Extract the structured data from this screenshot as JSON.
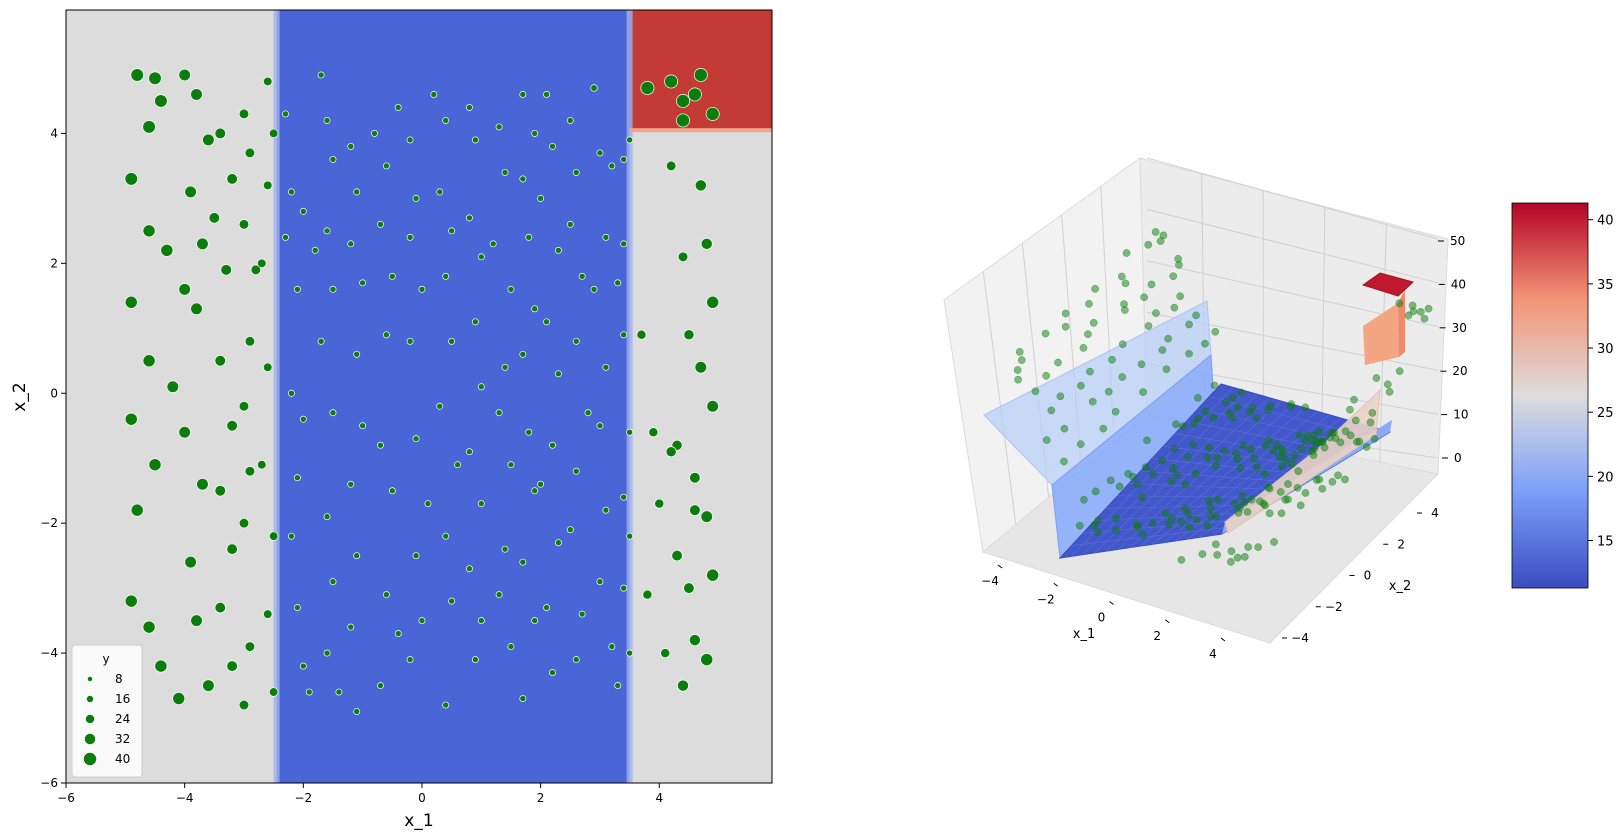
{
  "chart_data": [
    {
      "type": "scatter",
      "title": "",
      "xlabel": "x_1",
      "ylabel": "x_2",
      "xlim": [
        -6,
        5.9
      ],
      "ylim": [
        -6,
        5.9
      ],
      "xticks": [
        "−6",
        "−4",
        "−2",
        "0",
        "2",
        "4"
      ],
      "xtick_values": [
        -6,
        -4,
        -2,
        0,
        2,
        4
      ],
      "yticks": [
        "−6",
        "−4",
        "−2",
        "0",
        "2",
        "4"
      ],
      "ytick_values": [
        -6,
        -4,
        -2,
        0,
        2,
        4
      ],
      "background_regions": [
        {
          "x": [
            -6,
            -2.45
          ],
          "y": [
            -6,
            5.9
          ],
          "color": "#dcdcdc",
          "value": 25
        },
        {
          "x": [
            -2.45,
            3.5
          ],
          "y": [
            -6,
            5.9
          ],
          "color": "#4a65d6",
          "value": 12
        },
        {
          "x": [
            3.5,
            5.9
          ],
          "y": [
            -6,
            4.05
          ],
          "color": "#dcdcdc",
          "value": 25
        },
        {
          "x": [
            3.5,
            5.9
          ],
          "y": [
            4.05,
            5.9
          ],
          "color": "#c43a35",
          "value": 40
        }
      ],
      "point_color": "#0a7d0a",
      "points": [
        [
          -4.8,
          4.9,
          38
        ],
        [
          -4.5,
          4.85,
          38
        ],
        [
          -4.4,
          4.5,
          38
        ],
        [
          -4.6,
          4.1,
          38
        ],
        [
          -4.9,
          3.3,
          38
        ],
        [
          -4.6,
          2.5,
          36
        ],
        [
          -4.3,
          2.2,
          36
        ],
        [
          -4.9,
          1.4,
          36
        ],
        [
          -4.6,
          0.5,
          36
        ],
        [
          -4.9,
          -0.4,
          36
        ],
        [
          -4.5,
          -1.1,
          36
        ],
        [
          -4.8,
          -1.8,
          36
        ],
        [
          -4.9,
          -3.2,
          36
        ],
        [
          -4.6,
          -3.6,
          36
        ],
        [
          -4.4,
          -4.2,
          36
        ],
        [
          -4.1,
          -4.7,
          36
        ],
        [
          -4.0,
          4.9,
          34
        ],
        [
          -3.8,
          4.6,
          34
        ],
        [
          -3.6,
          3.9,
          34
        ],
        [
          -3.9,
          3.1,
          34
        ],
        [
          -3.7,
          2.3,
          34
        ],
        [
          -4.0,
          1.6,
          34
        ],
        [
          -3.8,
          1.3,
          34
        ],
        [
          -4.2,
          0.1,
          34
        ],
        [
          -4.0,
          -0.6,
          34
        ],
        [
          -3.7,
          -1.4,
          34
        ],
        [
          -3.9,
          -2.6,
          34
        ],
        [
          -3.8,
          -3.5,
          34
        ],
        [
          -3.6,
          -4.5,
          34
        ],
        [
          -3.4,
          4.0,
          30
        ],
        [
          -3.2,
          3.3,
          30
        ],
        [
          -3.5,
          2.7,
          30
        ],
        [
          -3.3,
          1.9,
          30
        ],
        [
          -3.4,
          0.5,
          30
        ],
        [
          -3.2,
          -0.5,
          30
        ],
        [
          -3.4,
          -1.5,
          30
        ],
        [
          -3.2,
          -2.4,
          30
        ],
        [
          -3.4,
          -3.3,
          30
        ],
        [
          -3.2,
          -4.2,
          30
        ],
        [
          -3.0,
          4.3,
          26
        ],
        [
          -2.9,
          3.7,
          26
        ],
        [
          -3.0,
          2.6,
          26
        ],
        [
          -2.8,
          1.9,
          26
        ],
        [
          -2.9,
          0.8,
          26
        ],
        [
          -3.0,
          -0.2,
          26
        ],
        [
          -2.9,
          -1.2,
          26
        ],
        [
          -3.0,
          -2.0,
          26
        ],
        [
          -2.9,
          -3.9,
          26
        ],
        [
          -3.0,
          -4.8,
          26
        ],
        [
          -2.6,
          4.8,
          22
        ],
        [
          -2.5,
          4.0,
          22
        ],
        [
          -2.6,
          3.2,
          22
        ],
        [
          -2.7,
          2.0,
          22
        ],
        [
          -2.6,
          0.4,
          22
        ],
        [
          -2.7,
          -1.1,
          22
        ],
        [
          -2.5,
          -2.2,
          22
        ],
        [
          -2.6,
          -3.4,
          22
        ],
        [
          -2.5,
          -4.6,
          22
        ],
        [
          -2.3,
          4.3,
          12
        ],
        [
          -2.2,
          3.1,
          12
        ],
        [
          -2.3,
          2.4,
          12
        ],
        [
          -2.0,
          2.8,
          12
        ],
        [
          -1.8,
          2.2,
          12
        ],
        [
          -2.1,
          1.6,
          12
        ],
        [
          -2.2,
          0.0,
          12
        ],
        [
          -2.0,
          -0.4,
          12
        ],
        [
          -2.1,
          -1.3,
          12
        ],
        [
          -2.2,
          -2.2,
          12
        ],
        [
          -2.1,
          -3.3,
          12
        ],
        [
          -2.0,
          -4.2,
          12
        ],
        [
          -1.9,
          -4.6,
          12
        ],
        [
          -1.7,
          4.9,
          12
        ],
        [
          -1.6,
          4.2,
          12
        ],
        [
          -1.5,
          3.6,
          12
        ],
        [
          -1.6,
          2.5,
          12
        ],
        [
          -1.5,
          1.6,
          12
        ],
        [
          -1.7,
          0.8,
          12
        ],
        [
          -1.5,
          -0.3,
          12
        ],
        [
          -1.6,
          -1.9,
          12
        ],
        [
          -1.5,
          -2.9,
          12
        ],
        [
          -1.6,
          -4.0,
          12
        ],
        [
          -1.4,
          -4.6,
          12
        ],
        [
          -1.2,
          3.8,
          12
        ],
        [
          -1.1,
          3.1,
          12
        ],
        [
          -1.2,
          2.3,
          12
        ],
        [
          -1.0,
          1.7,
          12
        ],
        [
          -1.1,
          0.6,
          12
        ],
        [
          -1.0,
          -0.5,
          12
        ],
        [
          -1.2,
          -1.4,
          12
        ],
        [
          -1.1,
          -2.5,
          12
        ],
        [
          -1.2,
          -3.6,
          12
        ],
        [
          -1.1,
          -4.9,
          12
        ],
        [
          -0.8,
          4.0,
          12
        ],
        [
          -0.6,
          3.5,
          12
        ],
        [
          -0.7,
          2.6,
          12
        ],
        [
          -0.5,
          1.8,
          12
        ],
        [
          -0.6,
          0.9,
          12
        ],
        [
          -0.7,
          -0.8,
          12
        ],
        [
          -0.5,
          -1.5,
          12
        ],
        [
          -0.6,
          -3.1,
          12
        ],
        [
          -0.4,
          -3.7,
          12
        ],
        [
          -0.7,
          -4.5,
          12
        ],
        [
          -0.4,
          4.4,
          12
        ],
        [
          -0.2,
          3.9,
          12
        ],
        [
          -0.1,
          3.0,
          12
        ],
        [
          -0.2,
          2.4,
          12
        ],
        [
          0.0,
          1.6,
          12
        ],
        [
          -0.2,
          0.8,
          12
        ],
        [
          -0.1,
          -0.7,
          12
        ],
        [
          0.1,
          -1.7,
          12
        ],
        [
          -0.1,
          -2.5,
          12
        ],
        [
          0.0,
          -3.5,
          12
        ],
        [
          -0.2,
          -4.1,
          12
        ],
        [
          0.2,
          4.6,
          12
        ],
        [
          0.4,
          4.2,
          12
        ],
        [
          0.3,
          3.1,
          12
        ],
        [
          0.5,
          2.5,
          12
        ],
        [
          0.4,
          1.8,
          12
        ],
        [
          0.5,
          0.8,
          12
        ],
        [
          0.3,
          -0.2,
          12
        ],
        [
          0.6,
          -1.1,
          12
        ],
        [
          0.4,
          -2.2,
          12
        ],
        [
          0.5,
          -3.2,
          12
        ],
        [
          0.4,
          -4.8,
          12
        ],
        [
          0.8,
          4.4,
          12
        ],
        [
          0.9,
          3.9,
          12
        ],
        [
          0.8,
          2.7,
          12
        ],
        [
          1.0,
          2.1,
          12
        ],
        [
          0.9,
          1.1,
          12
        ],
        [
          1.0,
          0.1,
          12
        ],
        [
          0.8,
          -0.9,
          12
        ],
        [
          1.0,
          -1.7,
          12
        ],
        [
          0.8,
          -2.7,
          12
        ],
        [
          1.0,
          -3.5,
          12
        ],
        [
          0.9,
          -4.1,
          12
        ],
        [
          1.3,
          4.1,
          12
        ],
        [
          1.4,
          3.4,
          12
        ],
        [
          1.2,
          2.3,
          12
        ],
        [
          1.5,
          1.6,
          12
        ],
        [
          1.4,
          0.4,
          12
        ],
        [
          1.3,
          -0.3,
          12
        ],
        [
          1.5,
          -1.1,
          12
        ],
        [
          1.4,
          -2.4,
          12
        ],
        [
          1.3,
          -3.1,
          12
        ],
        [
          1.5,
          -3.9,
          12
        ],
        [
          1.7,
          4.6,
          12
        ],
        [
          1.9,
          4.0,
          12
        ],
        [
          1.7,
          3.3,
          12
        ],
        [
          1.8,
          2.4,
          12
        ],
        [
          1.9,
          1.3,
          12
        ],
        [
          1.7,
          0.6,
          12
        ],
        [
          1.8,
          -0.6,
          12
        ],
        [
          1.9,
          -1.5,
          12
        ],
        [
          1.7,
          -2.6,
          12
        ],
        [
          1.9,
          -3.5,
          12
        ],
        [
          1.7,
          -4.7,
          12
        ],
        [
          2.1,
          4.6,
          12
        ],
        [
          2.2,
          3.8,
          12
        ],
        [
          2.0,
          3.0,
          12
        ],
        [
          2.3,
          2.2,
          12
        ],
        [
          2.1,
          1.1,
          12
        ],
        [
          2.3,
          0.3,
          12
        ],
        [
          2.2,
          -0.8,
          12
        ],
        [
          2.0,
          -1.4,
          12
        ],
        [
          2.3,
          -2.3,
          12
        ],
        [
          2.1,
          -3.3,
          12
        ],
        [
          2.2,
          -4.3,
          12
        ],
        [
          2.5,
          4.2,
          12
        ],
        [
          2.6,
          3.4,
          12
        ],
        [
          2.5,
          2.6,
          12
        ],
        [
          2.7,
          1.8,
          12
        ],
        [
          2.6,
          0.8,
          12
        ],
        [
          2.8,
          -0.3,
          12
        ],
        [
          2.6,
          -1.2,
          12
        ],
        [
          2.5,
          -2.1,
          12
        ],
        [
          2.7,
          -3.4,
          12
        ],
        [
          2.6,
          -4.1,
          12
        ],
        [
          2.9,
          4.7,
          14
        ],
        [
          3.0,
          3.7,
          12
        ],
        [
          3.2,
          3.5,
          12
        ],
        [
          3.1,
          2.4,
          12
        ],
        [
          2.9,
          1.6,
          12
        ],
        [
          3.1,
          0.4,
          12
        ],
        [
          3.0,
          -0.5,
          12
        ],
        [
          3.1,
          -1.8,
          12
        ],
        [
          3.0,
          -2.9,
          12
        ],
        [
          3.2,
          -3.9,
          12
        ],
        [
          3.3,
          -4.5,
          12
        ],
        [
          3.4,
          3.6,
          12
        ],
        [
          3.5,
          3.9,
          12
        ],
        [
          3.4,
          2.3,
          12
        ],
        [
          3.3,
          1.7,
          12
        ],
        [
          3.4,
          0.9,
          12
        ],
        [
          3.5,
          -0.6,
          12
        ],
        [
          3.4,
          -1.6,
          12
        ],
        [
          3.5,
          -2.2,
          12
        ],
        [
          3.4,
          -3.0,
          12
        ],
        [
          3.5,
          -4.0,
          12
        ],
        [
          3.8,
          4.7,
          40
        ],
        [
          4.2,
          4.8,
          40
        ],
        [
          4.4,
          4.5,
          40
        ],
        [
          4.7,
          4.9,
          40
        ],
        [
          4.6,
          4.6,
          40
        ],
        [
          4.9,
          4.3,
          40
        ],
        [
          4.4,
          4.2,
          40
        ],
        [
          3.7,
          0.9,
          24
        ],
        [
          3.9,
          -0.6,
          24
        ],
        [
          4.0,
          -1.7,
          24
        ],
        [
          3.8,
          -3.1,
          24
        ],
        [
          4.1,
          -4.0,
          24
        ],
        [
          4.2,
          3.5,
          26
        ],
        [
          4.4,
          2.1,
          26
        ],
        [
          4.5,
          0.9,
          28
        ],
        [
          4.3,
          -0.8,
          28
        ],
        [
          4.6,
          -1.8,
          30
        ],
        [
          4.5,
          -3.0,
          30
        ],
        [
          4.4,
          -4.5,
          32
        ],
        [
          4.7,
          3.2,
          32
        ],
        [
          4.8,
          2.3,
          32
        ],
        [
          4.7,
          0.4,
          34
        ],
        [
          4.9,
          -0.2,
          34
        ],
        [
          4.8,
          -1.9,
          34
        ],
        [
          4.9,
          -2.8,
          36
        ],
        [
          4.8,
          -4.1,
          36
        ],
        [
          4.9,
          1.4,
          36
        ],
        [
          4.6,
          -1.3,
          30
        ],
        [
          4.2,
          -0.9,
          28
        ],
        [
          4.6,
          -3.8,
          32
        ],
        [
          4.3,
          -2.5,
          30
        ]
      ],
      "legend": {
        "title": "y",
        "position": "lower-left",
        "entries": [
          {
            "label": "8",
            "value": 8
          },
          {
            "label": "16",
            "value": 16
          },
          {
            "label": "24",
            "value": 24
          },
          {
            "label": "32",
            "value": 32
          },
          {
            "label": "40",
            "value": 40
          }
        ]
      }
    },
    {
      "type": "surface3d",
      "title": "",
      "xlabel": "x_1",
      "ylabel": "x_2",
      "zlabel": "",
      "xticks": [
        "−4",
        "−2",
        "0",
        "2",
        "4"
      ],
      "yticks": [
        "−4",
        "−2",
        "0",
        "2",
        "4"
      ],
      "zticks": [
        "0",
        "10",
        "20",
        "30",
        "40",
        "50"
      ],
      "zlim": [
        0,
        50
      ],
      "surface_levels": [
        {
          "region": "x_1 < -2.45",
          "z": 25
        },
        {
          "region": "-2.45 <= x_1 < 3.5",
          "z": 12
        },
        {
          "region": "x_1 >= 3.5, x_2 < 4.05",
          "z": 25
        },
        {
          "region": "x_1 >= 3.5, x_2 >= 4.05",
          "z": 40
        }
      ],
      "points_color": "#0a7d0a",
      "colorbar": {
        "cmap": "coolwarm",
        "range": [
          11.3,
          41.3
        ],
        "tick_labels": [
          "15",
          "20",
          "25",
          "30",
          "35",
          "40"
        ],
        "tick_values": [
          15,
          20,
          25,
          30,
          35,
          40
        ]
      }
    }
  ]
}
